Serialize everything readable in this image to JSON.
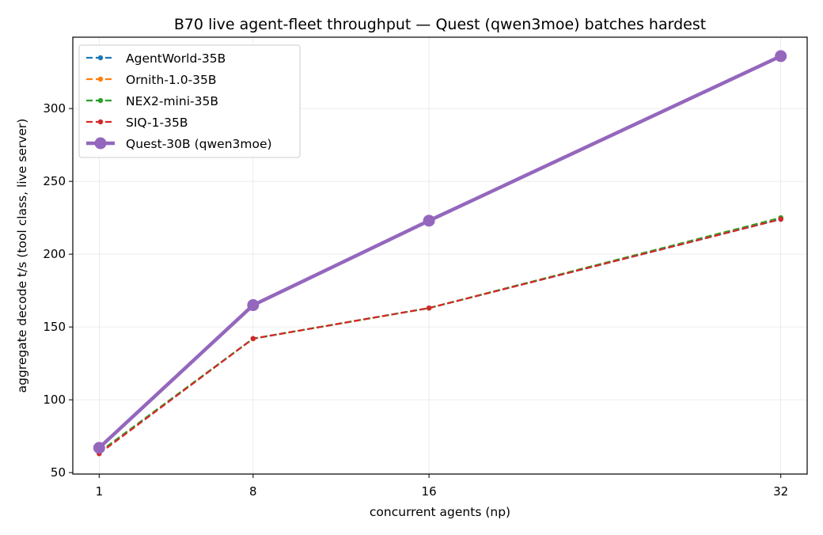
{
  "chart_data": {
    "type": "line",
    "title": "B70 live agent-fleet throughput — Quest (qwen3moe) batches hardest",
    "xlabel": "concurrent agents (np)",
    "ylabel": "aggregate decode t/s (tool class, live server)",
    "x": [
      1,
      8,
      16,
      32
    ],
    "x_tick_labels": [
      "1",
      "8",
      "16",
      "32"
    ],
    "y_ticks": [
      50,
      100,
      150,
      200,
      250,
      300
    ],
    "xlim": [
      -0.2,
      33.2
    ],
    "ylim": [
      49,
      349
    ],
    "grid": true,
    "legend_position": "upper-left",
    "series": [
      {
        "name": "AgentWorld-35B",
        "values": [
          64,
          142,
          163,
          224
        ],
        "color": "#1f77b4",
        "style": "dashed",
        "marker": "small-dot"
      },
      {
        "name": "Ornith-1.0-35B",
        "values": [
          64,
          142,
          163,
          225
        ],
        "color": "#ff7f0e",
        "style": "dashed",
        "marker": "small-dot"
      },
      {
        "name": "NEX2-mini-35B",
        "values": [
          64,
          142,
          163,
          225
        ],
        "color": "#2ca02c",
        "style": "dashed",
        "marker": "small-dot"
      },
      {
        "name": "SIQ-1-35B",
        "values": [
          63,
          142,
          163,
          224
        ],
        "color": "#d62728",
        "style": "dashed",
        "marker": "small-dot"
      },
      {
        "name": "Quest-30B (qwen3moe)",
        "values": [
          67,
          165,
          223,
          336
        ],
        "color": "#9467bd",
        "style": "solid",
        "marker": "large-dot"
      }
    ]
  }
}
